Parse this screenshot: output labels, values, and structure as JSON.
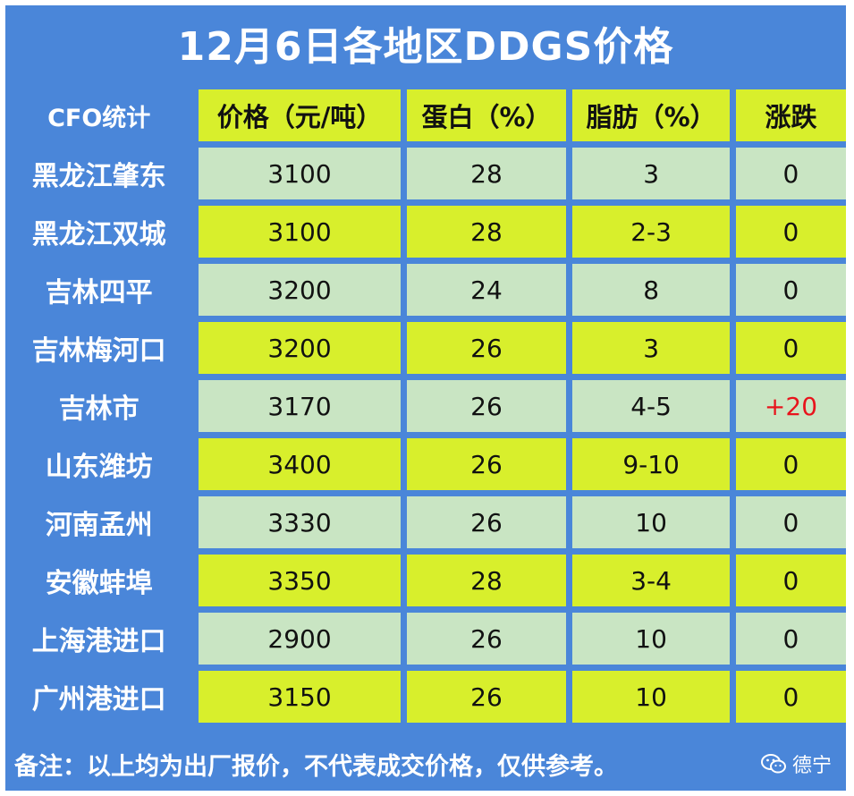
{
  "title": "12月6日各地区DDGS价格",
  "header": {
    "source": "CFO统计",
    "price": "价格（元/吨）",
    "protein": "蛋白（%）",
    "fat": "脂肪（%）",
    "change": "涨跌"
  },
  "rows": [
    {
      "region": "黑龙江肇东",
      "price": "3100",
      "protein": "28",
      "fat": "3",
      "change": "0"
    },
    {
      "region": "黑龙江双城",
      "price": "3100",
      "protein": "28",
      "fat": "2-3",
      "change": "0"
    },
    {
      "region": "吉林四平",
      "price": "3200",
      "protein": "24",
      "fat": "8",
      "change": "0"
    },
    {
      "region": "吉林梅河口",
      "price": "3200",
      "protein": "26",
      "fat": "3",
      "change": "0"
    },
    {
      "region": "吉林市",
      "price": "3170",
      "protein": "26",
      "fat": "4-5",
      "change": "+20"
    },
    {
      "region": "山东潍坊",
      "price": "3400",
      "protein": "26",
      "fat": "9-10",
      "change": "0"
    },
    {
      "region": "河南孟州",
      "price": "3330",
      "protein": "26",
      "fat": "10",
      "change": "0"
    },
    {
      "region": "安徽蚌埠",
      "price": "3350",
      "protein": "28",
      "fat": "3-4",
      "change": "0"
    },
    {
      "region": "上海港进口",
      "price": "2900",
      "protein": "26",
      "fat": "10",
      "change": "0"
    },
    {
      "region": "广州港进口",
      "price": "3150",
      "protein": "26",
      "fat": "10",
      "change": "0"
    }
  ],
  "note": "备注：以上均为出厂报价，不代表成交价格，仅供参考。",
  "watermark": "德宁",
  "colors": {
    "blue": "#4a86d9",
    "yellow": "#d8ef2c",
    "green": "#c9e5c3",
    "up": "#e8141c"
  },
  "icons": {
    "watermark": "wechat-icon"
  }
}
